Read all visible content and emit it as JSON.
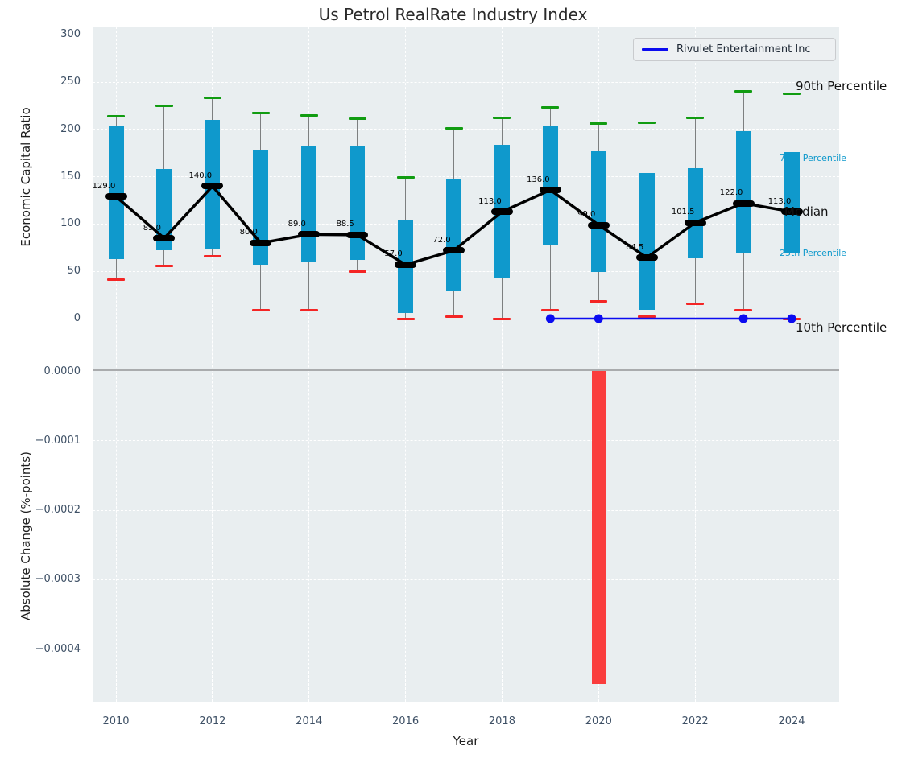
{
  "chart_data": [
    {
      "type": "box-whisker-with-median-line",
      "title": "Us Petrol RealRate Industry Index",
      "ylabel": "Economic Capital Ratio",
      "xlabel": "",
      "ylim": [
        -55,
        300
      ],
      "grid": true,
      "legend_position": "upper right",
      "ytick_labels": [
        "300",
        "250",
        "200",
        "150",
        "100",
        "50",
        "0"
      ],
      "ytick_values": [
        300,
        250,
        200,
        150,
        100,
        50,
        0
      ],
      "annotations": {
        "p90": "90th Percentile",
        "p75": "75th Percentile",
        "median": "Median",
        "p25": "25th Percentile",
        "p10": "10th Percentile"
      },
      "legend": {
        "label": "Rivulet Entertainment Inc",
        "line_color": "#0b0bf0"
      },
      "years": [
        2010,
        2011,
        2012,
        2013,
        2014,
        2015,
        2016,
        2017,
        2018,
        2019,
        2020,
        2021,
        2022,
        2023,
        2024
      ],
      "median_labels": [
        "129.0",
        "85.0",
        "140.0",
        "80.0",
        "89.0",
        "88.5",
        "57.0",
        "72.0",
        "113.0",
        "136.0",
        "99.0",
        "64.5",
        "101.5",
        "122.0",
        "113.0"
      ],
      "series": [
        {
          "name": "90th Percentile",
          "role": "p90",
          "color": "#119c11",
          "values": [
            214,
            225,
            233,
            217,
            215,
            211,
            149,
            201,
            212,
            223,
            206,
            207,
            212,
            240,
            238
          ]
        },
        {
          "name": "75th Percentile",
          "role": "p75",
          "color": "#0f99cc",
          "values": [
            203,
            158,
            210,
            178,
            183,
            183,
            105,
            148,
            184,
            203,
            177,
            154,
            159,
            198,
            176
          ]
        },
        {
          "name": "Median",
          "role": "median",
          "color": "#000000",
          "values": [
            129,
            85,
            140,
            80,
            89,
            88.5,
            57,
            72,
            113,
            136,
            99,
            64.5,
            101.5,
            122,
            113
          ]
        },
        {
          "name": "25th Percentile",
          "role": "p25",
          "color": "#0f99cc",
          "values": [
            63,
            72,
            73,
            57,
            60,
            62,
            6,
            29,
            43,
            77,
            49,
            9,
            64,
            70,
            69
          ]
        },
        {
          "name": "10th Percentile",
          "role": "p10",
          "color": "#f42525",
          "values": [
            41,
            56,
            66,
            9,
            9,
            50,
            0,
            2,
            0,
            9,
            18,
            2,
            16,
            9,
            0
          ]
        },
        {
          "name": "Rivulet Entertainment Inc",
          "role": "company-line",
          "color": "#0b0bf0",
          "x": [
            2019,
            2020,
            2023,
            2024
          ],
          "values": [
            0,
            0,
            0,
            0
          ]
        }
      ]
    },
    {
      "type": "bar",
      "title": "",
      "ylabel": "Absolute Change (%-points)",
      "xlabel": "Year",
      "ylim": [
        -0.000478,
        0.0
      ],
      "grid": true,
      "ytick_labels": [
        "0.0000",
        "−0.0001",
        "−0.0002",
        "−0.0003",
        "−0.0004"
      ],
      "ytick_values": [
        0,
        -0.0001,
        -0.0002,
        -0.0003,
        -0.0004
      ],
      "xtick_labels": [
        "2010",
        "2012",
        "2014",
        "2016",
        "2018",
        "2020",
        "2022",
        "2024"
      ],
      "xtick_values": [
        2010,
        2012,
        2014,
        2016,
        2018,
        2020,
        2022,
        2024
      ],
      "bar_color": "#fa3d3d",
      "x": [
        2020
      ],
      "values": [
        -0.00045
      ]
    }
  ]
}
